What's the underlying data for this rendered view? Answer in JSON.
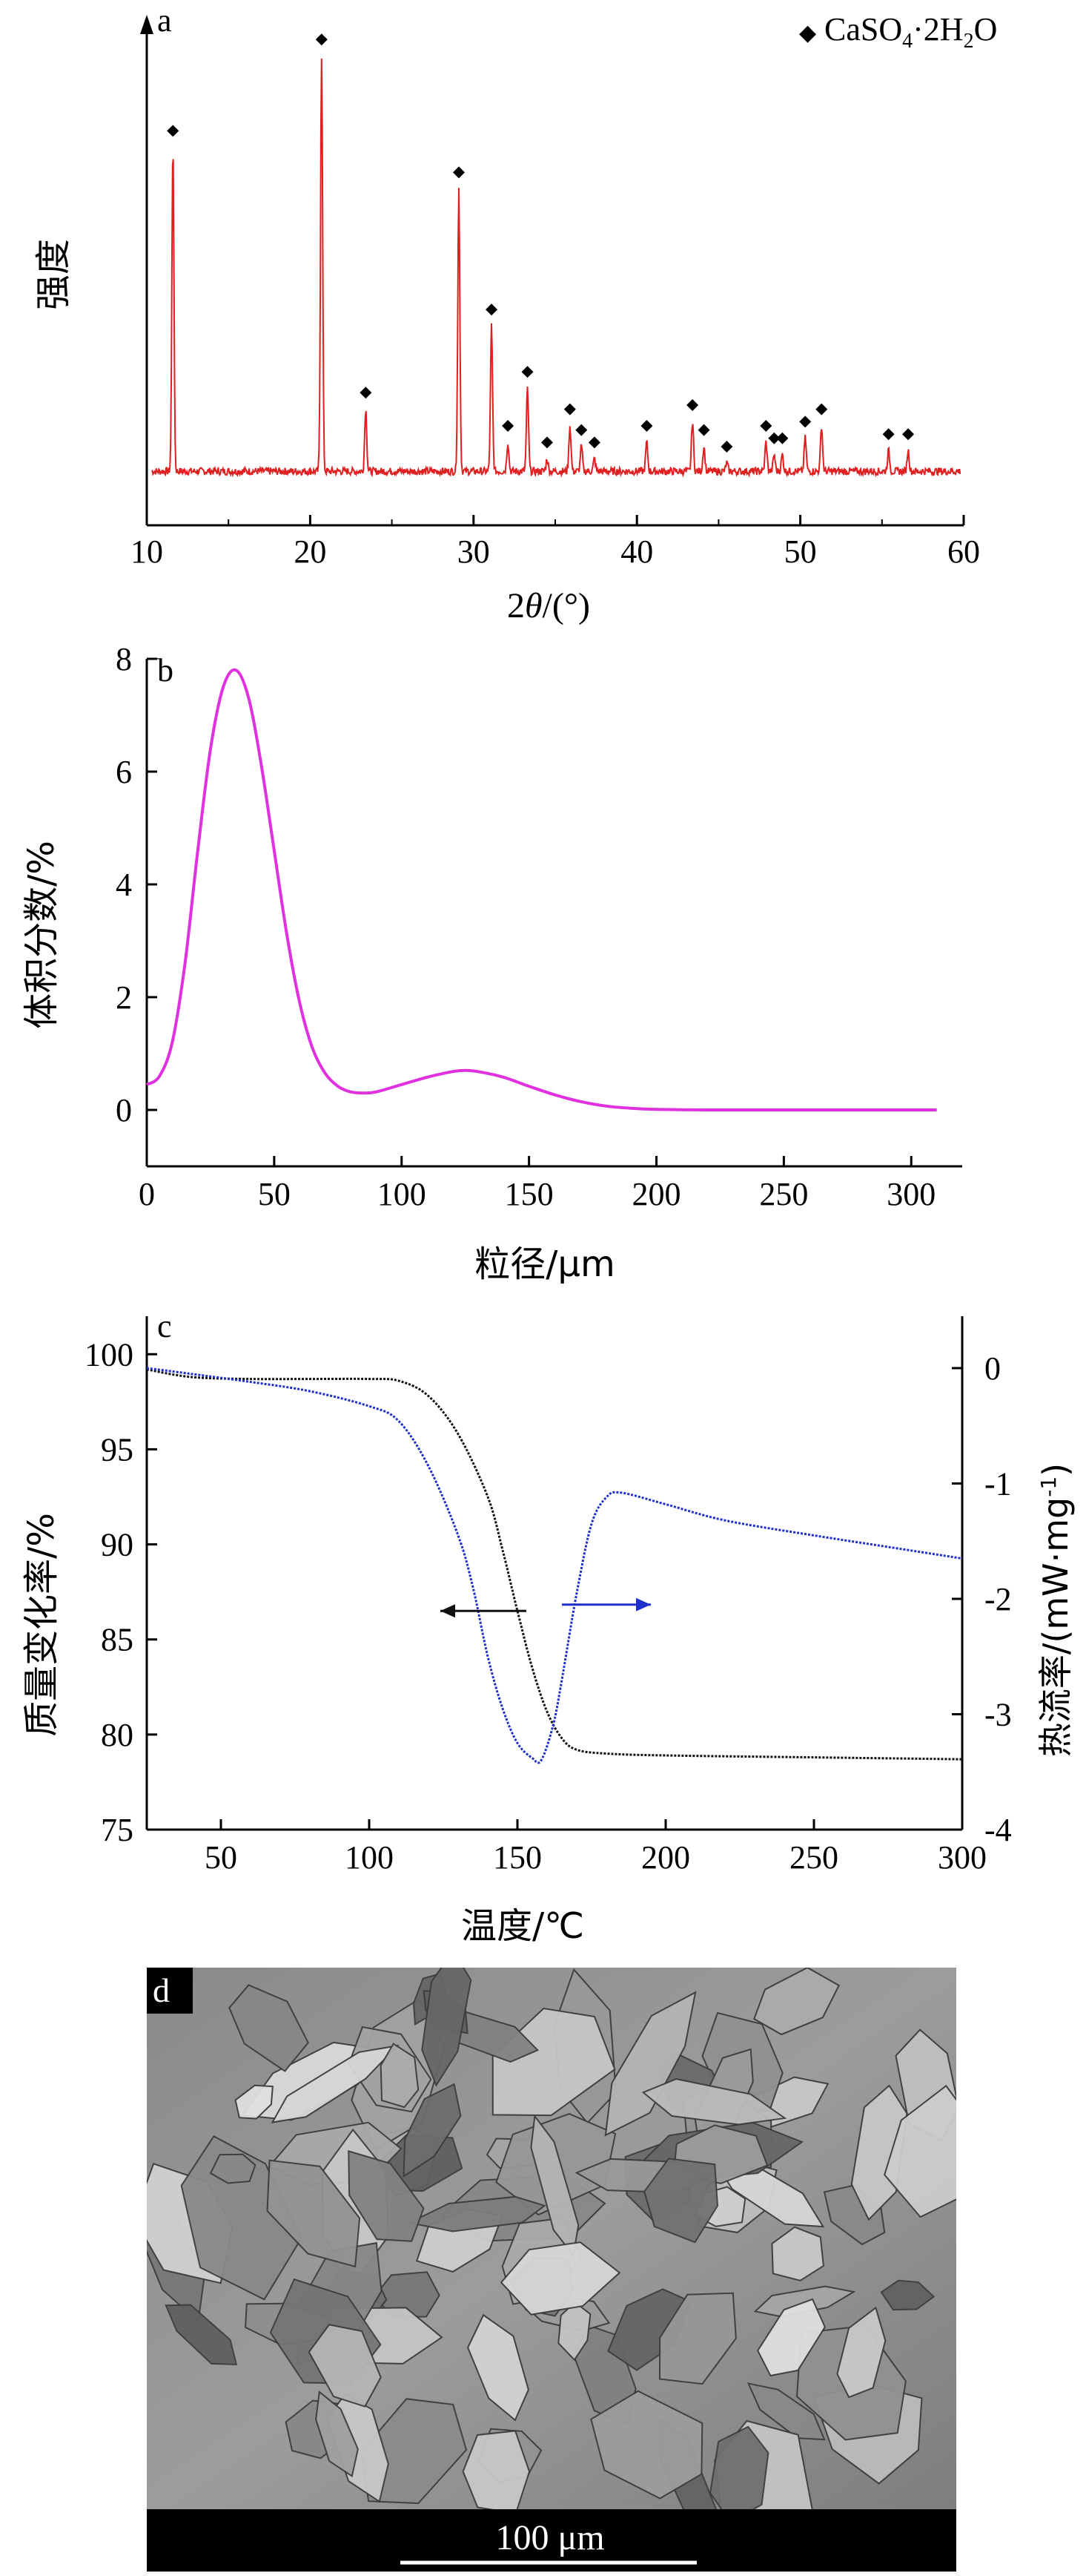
{
  "colors": {
    "xrd_line": "#e02020",
    "psd_line": "#e030e0",
    "tg_line": "#111111",
    "dsc_line": "#1f2fcc",
    "axis": "#000000",
    "scale_bar_bg": "#000000",
    "scale_bar_text": "#ffffff"
  },
  "chart_data": [
    {
      "panel": "a",
      "type": "line",
      "panel_label": "a",
      "xlabel_prefix": "2",
      "xlabel_italic": "θ",
      "xlabel_suffix": "/(°)",
      "ylabel": "强度",
      "xlim": [
        10,
        60
      ],
      "xticks": [
        10,
        20,
        30,
        40,
        50,
        60
      ],
      "yticks": [],
      "legend": {
        "marker": "◆",
        "label_parts": [
          "CaSO",
          "4",
          "·2H",
          "2",
          "O"
        ],
        "placement": "top-right"
      },
      "background_level": 0.03,
      "peaks": [
        {
          "x": 11.6,
          "y": 0.78
        },
        {
          "x": 20.7,
          "y": 1.0
        },
        {
          "x": 23.4,
          "y": 0.15
        },
        {
          "x": 29.1,
          "y": 0.68
        },
        {
          "x": 31.1,
          "y": 0.35
        },
        {
          "x": 32.1,
          "y": 0.07
        },
        {
          "x": 33.3,
          "y": 0.2
        },
        {
          "x": 34.5,
          "y": 0.03
        },
        {
          "x": 35.9,
          "y": 0.11
        },
        {
          "x": 36.6,
          "y": 0.06
        },
        {
          "x": 37.4,
          "y": 0.03
        },
        {
          "x": 40.6,
          "y": 0.07
        },
        {
          "x": 43.4,
          "y": 0.12
        },
        {
          "x": 44.1,
          "y": 0.06
        },
        {
          "x": 45.5,
          "y": 0.02
        },
        {
          "x": 47.9,
          "y": 0.07
        },
        {
          "x": 48.4,
          "y": 0.04
        },
        {
          "x": 48.9,
          "y": 0.04
        },
        {
          "x": 50.3,
          "y": 0.08
        },
        {
          "x": 51.3,
          "y": 0.11
        },
        {
          "x": 55.4,
          "y": 0.05
        },
        {
          "x": 56.6,
          "y": 0.05
        }
      ]
    },
    {
      "panel": "b",
      "type": "line",
      "panel_label": "b",
      "xlabel": "粒径/μm",
      "ylabel": "体积分数/%",
      "xlim": [
        0,
        320
      ],
      "ylim": [
        -1,
        8
      ],
      "xticks": [
        0,
        50,
        100,
        150,
        200,
        250,
        300
      ],
      "yticks": [
        0,
        2,
        4,
        6,
        8
      ],
      "series": [
        {
          "x": [
            0,
            5,
            10,
            15,
            20,
            25,
            30,
            35,
            40,
            45,
            50,
            55,
            60,
            65,
            70,
            75,
            80,
            85,
            90,
            100,
            110,
            120,
            125,
            130,
            140,
            150,
            160,
            170,
            180,
            190,
            200,
            220,
            250,
            280,
            310
          ],
          "y": [
            0.45,
            0.6,
            1.2,
            2.6,
            4.6,
            6.4,
            7.5,
            7.8,
            7.3,
            6.1,
            4.6,
            3.1,
            1.9,
            1.1,
            0.65,
            0.42,
            0.32,
            0.3,
            0.32,
            0.45,
            0.58,
            0.68,
            0.7,
            0.68,
            0.58,
            0.42,
            0.27,
            0.15,
            0.07,
            0.03,
            0.01,
            0.0,
            0.0,
            0.0,
            0.0
          ]
        }
      ]
    },
    {
      "panel": "c",
      "type": "line",
      "panel_label": "c",
      "xlabel": "温度/℃",
      "ylabel_left": "质量变化率/%",
      "ylabel_right": "热流率/(mW·mg",
      "ylabel_right_sup": "-1",
      "ylabel_right_end": ")",
      "xlim": [
        25,
        300
      ],
      "ylim_left": [
        75,
        102
      ],
      "ylim_right": [
        -4,
        0.45
      ],
      "xticks": [
        50,
        100,
        150,
        200,
        250,
        300
      ],
      "yticks_left": [
        75,
        80,
        85,
        90,
        95,
        100
      ],
      "yticks_right": [
        0,
        -1,
        -2,
        -3,
        -4
      ],
      "series": [
        {
          "axis": "left",
          "x": [
            25,
            40,
            60,
            80,
            100,
            110,
            120,
            130,
            140,
            145,
            150,
            155,
            160,
            165,
            170,
            180,
            200,
            250,
            300
          ],
          "y": [
            99.2,
            98.8,
            98.7,
            98.7,
            98.7,
            98.6,
            97.8,
            95.8,
            92.5,
            89.7,
            86.5,
            83.5,
            81.2,
            79.8,
            79.2,
            79.0,
            78.9,
            78.8,
            78.7
          ]
        },
        {
          "axis": "right",
          "x": [
            25,
            40,
            60,
            80,
            100,
            110,
            120,
            130,
            135,
            140,
            145,
            150,
            155,
            158,
            162,
            165,
            170,
            175,
            180,
            185,
            200,
            220,
            250,
            280,
            300
          ],
          "y": [
            0.0,
            -0.05,
            -0.12,
            -0.2,
            -0.33,
            -0.46,
            -0.85,
            -1.45,
            -1.9,
            -2.5,
            -2.95,
            -3.25,
            -3.38,
            -3.4,
            -3.1,
            -2.7,
            -1.95,
            -1.35,
            -1.12,
            -1.08,
            -1.18,
            -1.32,
            -1.45,
            -1.57,
            -1.65
          ]
        }
      ],
      "arrows": [
        {
          "direction": "left",
          "y_axis": "left",
          "y": 86.5,
          "x_from": 153,
          "x_to": 124
        },
        {
          "direction": "right",
          "y_axis": "right",
          "y": -2.05,
          "x_from": 165,
          "x_to": 195
        }
      ]
    }
  ],
  "panel_d": {
    "label": "d",
    "scale_bar_text": "100 μm"
  }
}
